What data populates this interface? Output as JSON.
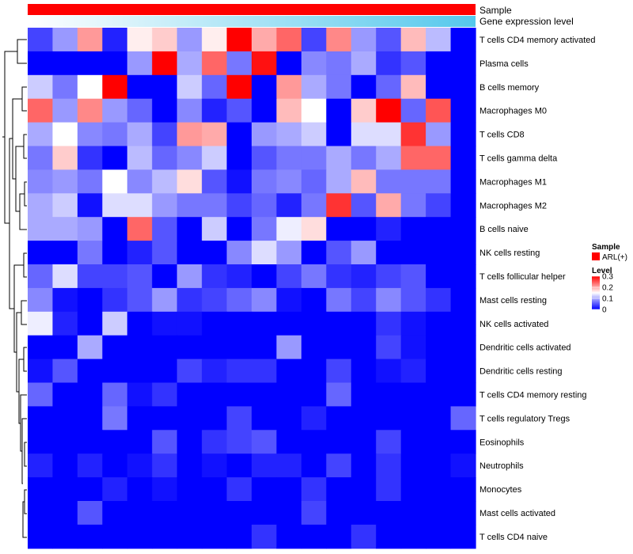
{
  "chart_data": {
    "type": "heatmap",
    "annotations": [
      {
        "name": "Sample",
        "colors": [
          "#ff0000"
        ]
      },
      {
        "name": "Gene expression level",
        "gradient": [
          "#ffffff",
          "#55c8ec"
        ]
      }
    ],
    "rows": [
      "T cells CD4 memory activated",
      "Plasma cells",
      "B cells memory",
      "Macrophages M0",
      "T cells CD8",
      "T cells gamma delta",
      "Macrophages M1",
      "Macrophages M2",
      "B cells naive",
      "NK cells resting",
      "T cells follicular helper",
      "Mast cells resting",
      "NK cells activated",
      "Dendritic cells activated",
      "Dendritic cells resting",
      "T cells CD4 memory resting",
      "T cells regulatory  Tregs",
      "Eosinophils",
      "Neutrophils",
      "Monocytes",
      "Mast cells activated",
      "T cells CD4 naive"
    ],
    "n_columns": 18,
    "values": [
      [
        0.04,
        0.09,
        0.21,
        0.02,
        0.16,
        0.18,
        0.09,
        0.16,
        0.3,
        0.2,
        0.24,
        0.04,
        0.22,
        0.09,
        0.05,
        0.19,
        0.11,
        0.0
      ],
      [
        0.0,
        0.0,
        0.0,
        0.0,
        0.09,
        0.3,
        0.1,
        0.24,
        0.07,
        0.29,
        0.0,
        0.08,
        0.07,
        0.1,
        0.03,
        0.05,
        0.0,
        0.0
      ],
      [
        0.12,
        0.07,
        0.15,
        0.3,
        0.0,
        0.0,
        0.12,
        0.06,
        0.3,
        0.0,
        0.21,
        0.1,
        0.07,
        0.0,
        0.06,
        0.19,
        0.0,
        0.0
      ],
      [
        0.24,
        0.09,
        0.22,
        0.09,
        0.06,
        0.0,
        0.08,
        0.02,
        0.05,
        0.0,
        0.19,
        0.15,
        0.0,
        0.18,
        0.3,
        0.06,
        0.25,
        0.0
      ],
      [
        0.1,
        0.15,
        0.08,
        0.07,
        0.1,
        0.04,
        0.21,
        0.2,
        0.0,
        0.09,
        0.1,
        0.12,
        0.0,
        0.13,
        0.13,
        0.27,
        0.09,
        0.0
      ],
      [
        0.07,
        0.18,
        0.03,
        0.0,
        0.11,
        0.06,
        0.08,
        0.12,
        0.0,
        0.05,
        0.07,
        0.07,
        0.1,
        0.07,
        0.1,
        0.24,
        0.24,
        0.0
      ],
      [
        0.08,
        0.09,
        0.07,
        0.15,
        0.08,
        0.11,
        0.17,
        0.05,
        0.01,
        0.07,
        0.08,
        0.06,
        0.1,
        0.19,
        0.07,
        0.07,
        0.07,
        0.0
      ],
      [
        0.1,
        0.12,
        0.01,
        0.13,
        0.13,
        0.09,
        0.07,
        0.07,
        0.04,
        0.06,
        0.02,
        0.07,
        0.27,
        0.05,
        0.2,
        0.07,
        0.04,
        0.0
      ],
      [
        0.1,
        0.1,
        0.09,
        0.0,
        0.24,
        0.05,
        0.0,
        0.12,
        0.0,
        0.07,
        0.14,
        0.17,
        0.0,
        0.0,
        0.02,
        0.0,
        0.0,
        0.0
      ],
      [
        0.0,
        0.0,
        0.07,
        0.0,
        0.02,
        0.05,
        0.0,
        0.0,
        0.08,
        0.13,
        0.09,
        0.0,
        0.05,
        0.09,
        0.0,
        0.0,
        0.0,
        0.0
      ],
      [
        0.06,
        0.13,
        0.04,
        0.04,
        0.05,
        0.0,
        0.09,
        0.03,
        0.02,
        0.0,
        0.04,
        0.07,
        0.03,
        0.02,
        0.04,
        0.05,
        0.0,
        0.0
      ],
      [
        0.08,
        0.01,
        0.0,
        0.03,
        0.05,
        0.09,
        0.03,
        0.04,
        0.06,
        0.08,
        0.01,
        0.0,
        0.07,
        0.04,
        0.08,
        0.05,
        0.03,
        0.0
      ],
      [
        0.14,
        0.02,
        0.0,
        0.12,
        0.0,
        0.01,
        0.01,
        0.0,
        0.0,
        0.0,
        0.0,
        0.0,
        0.0,
        0.0,
        0.03,
        0.01,
        0.0,
        0.0
      ],
      [
        0.0,
        0.0,
        0.1,
        0.0,
        0.0,
        0.0,
        0.0,
        0.0,
        0.0,
        0.0,
        0.09,
        0.0,
        0.0,
        0.0,
        0.04,
        0.01,
        0.0,
        0.0
      ],
      [
        0.01,
        0.05,
        0.0,
        0.0,
        0.0,
        0.0,
        0.04,
        0.02,
        0.03,
        0.03,
        0.0,
        0.0,
        0.04,
        0.0,
        0.01,
        0.02,
        0.0,
        0.0
      ],
      [
        0.06,
        0.0,
        0.0,
        0.06,
        0.01,
        0.03,
        0.0,
        0.0,
        0.0,
        0.0,
        0.0,
        0.0,
        0.06,
        0.0,
        0.0,
        0.0,
        0.0,
        0.0
      ],
      [
        0.0,
        0.0,
        0.0,
        0.07,
        0.0,
        0.0,
        0.0,
        0.0,
        0.04,
        0.0,
        0.0,
        0.02,
        0.0,
        0.0,
        0.0,
        0.0,
        0.0,
        0.06
      ],
      [
        0.0,
        0.0,
        0.0,
        0.0,
        0.0,
        0.05,
        0.0,
        0.03,
        0.04,
        0.05,
        0.0,
        0.0,
        0.0,
        0.0,
        0.04,
        0.0,
        0.0,
        0.0
      ],
      [
        0.02,
        0.0,
        0.02,
        0.0,
        0.01,
        0.03,
        0.0,
        0.01,
        0.0,
        0.02,
        0.02,
        0.0,
        0.04,
        0.0,
        0.03,
        0.0,
        0.0,
        0.01
      ],
      [
        0.0,
        0.0,
        0.0,
        0.02,
        0.0,
        0.01,
        0.0,
        0.0,
        0.03,
        0.0,
        0.0,
        0.03,
        0.0,
        0.0,
        0.03,
        0.0,
        0.0,
        0.0
      ],
      [
        0.0,
        0.0,
        0.05,
        0.0,
        0.0,
        0.0,
        0.0,
        0.0,
        0.0,
        0.0,
        0.0,
        0.04,
        0.0,
        0.0,
        0.0,
        0.0,
        0.0,
        0.0
      ],
      [
        0.0,
        0.0,
        0.0,
        0.0,
        0.0,
        0.0,
        0.0,
        0.0,
        0.0,
        0.03,
        0.0,
        0.0,
        0.0,
        0.03,
        0.0,
        0.0,
        0.0,
        0.0
      ]
    ],
    "color_scale": {
      "low": "#0000ff",
      "mid": "#ffffff",
      "high": "#ff0000",
      "min": 0,
      "mid_value": 0.15,
      "max": 0.3
    },
    "legend": {
      "sample_title": "Sample",
      "sample_items": [
        {
          "label": "ARL(+)",
          "color": "#ff0000"
        }
      ],
      "level_title": "Level",
      "level_ticks": [
        {
          "value": 0.3,
          "label": "0.3"
        },
        {
          "value": 0.2,
          "label": "0.2"
        },
        {
          "value": 0.1,
          "label": "0.1"
        },
        {
          "value": 0,
          "label": "0"
        }
      ],
      "position": "right"
    },
    "row_dendrogram": true
  }
}
